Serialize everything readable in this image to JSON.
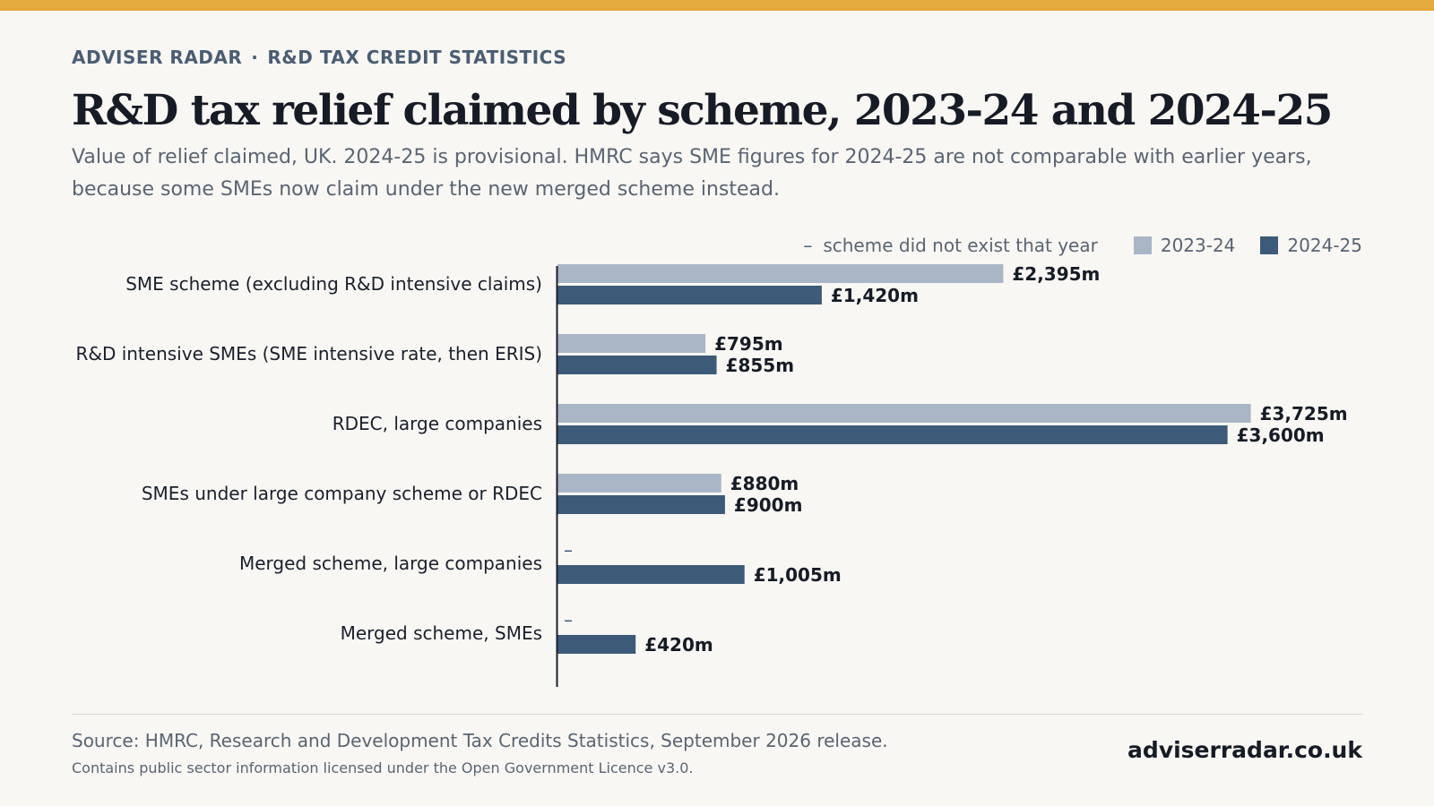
{
  "header": {
    "kicker_brand": "ADVISER RADAR",
    "kicker_separator": "·",
    "kicker_section": "R&D TAX CREDIT STATISTICS",
    "title": "R&D tax relief claimed by scheme, 2023-24 and 2024-25",
    "subtitle": "Value of relief claimed, UK. 2024-25 is provisional. HMRC says SME figures for 2024-25 are not comparable with earlier years, because some SMEs now claim under the new merged scheme instead."
  },
  "legend": {
    "missing_symbol": "–",
    "missing_note": "scheme did not exist that year",
    "series_1": "2023-24",
    "series_2": "2024-25"
  },
  "colors": {
    "accent_bar": "#e5aa3e",
    "series_2023_24": "#a9b6c6",
    "series_2024_25": "#3d5a78"
  },
  "chart_data": {
    "type": "bar",
    "orientation": "horizontal",
    "unit": "£m",
    "categories": [
      "SME scheme (excluding R&D intensive claims)",
      "R&D intensive SMEs (SME intensive rate, then ERIS)",
      "RDEC, large companies",
      "SMEs under large company scheme or RDEC",
      "Merged scheme, large companies",
      "Merged scheme, SMEs"
    ],
    "series": [
      {
        "name": "2023-24",
        "values": [
          2395,
          795,
          3725,
          880,
          null,
          null
        ],
        "labels": [
          "£2,395m",
          "£795m",
          "£3,725m",
          "£880m",
          "–",
          "–"
        ]
      },
      {
        "name": "2024-25",
        "values": [
          1420,
          855,
          3600,
          900,
          1005,
          420
        ],
        "labels": [
          "£1,420m",
          "£855m",
          "£3,600m",
          "£900m",
          "£1,005m",
          "£420m"
        ]
      }
    ],
    "xlim": [
      0,
      4300
    ],
    "grid": false,
    "legend_position": "top-right"
  },
  "footer": {
    "source": "Source: HMRC, Research and Development Tax Credits Statistics, September 2026 release.",
    "licence": "Contains public sector information licensed under the Open Government Licence v3.0.",
    "site": "adviserradar.co.uk"
  }
}
